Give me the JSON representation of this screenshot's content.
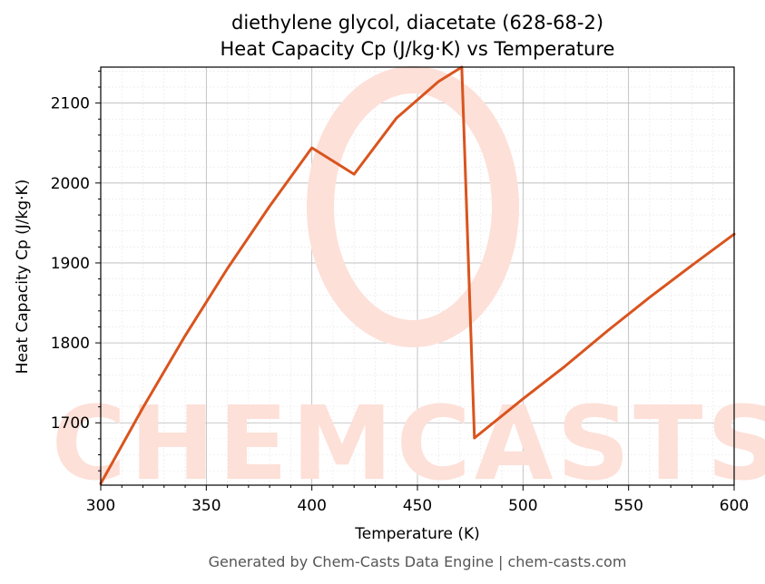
{
  "chart_data": {
    "type": "line",
    "title_line1": "diethylene glycol, diacetate (628-68-2)",
    "title_line2": "Heat Capacity Cp (J/kg·K) vs Temperature",
    "xlabel": "Temperature (K)",
    "ylabel": "Heat Capacity Cp (J/kg·K)",
    "xlim": [
      300,
      600
    ],
    "ylim": [
      1622,
      2145
    ],
    "xticks": [
      300,
      350,
      400,
      450,
      500,
      550,
      600
    ],
    "yticks": [
      1700,
      1800,
      1900,
      2000,
      2100
    ],
    "grid": true,
    "line_color": "#d9541e",
    "series": [
      {
        "x": [
          300,
          320,
          340,
          360,
          380,
          400,
          420,
          440,
          460,
          471,
          477,
          500,
          520,
          540,
          560,
          580,
          600
        ],
        "y": [
          1624,
          1719,
          1809,
          1893,
          1971,
          2044,
          2011,
          2081,
          2127,
          2145,
          1681,
          1730,
          1771,
          1815,
          1857,
          1897,
          1936
        ]
      }
    ]
  },
  "watermark": "CHEMCASTS",
  "footer": "Generated by Chem-Casts Data Engine | chem-casts.com"
}
